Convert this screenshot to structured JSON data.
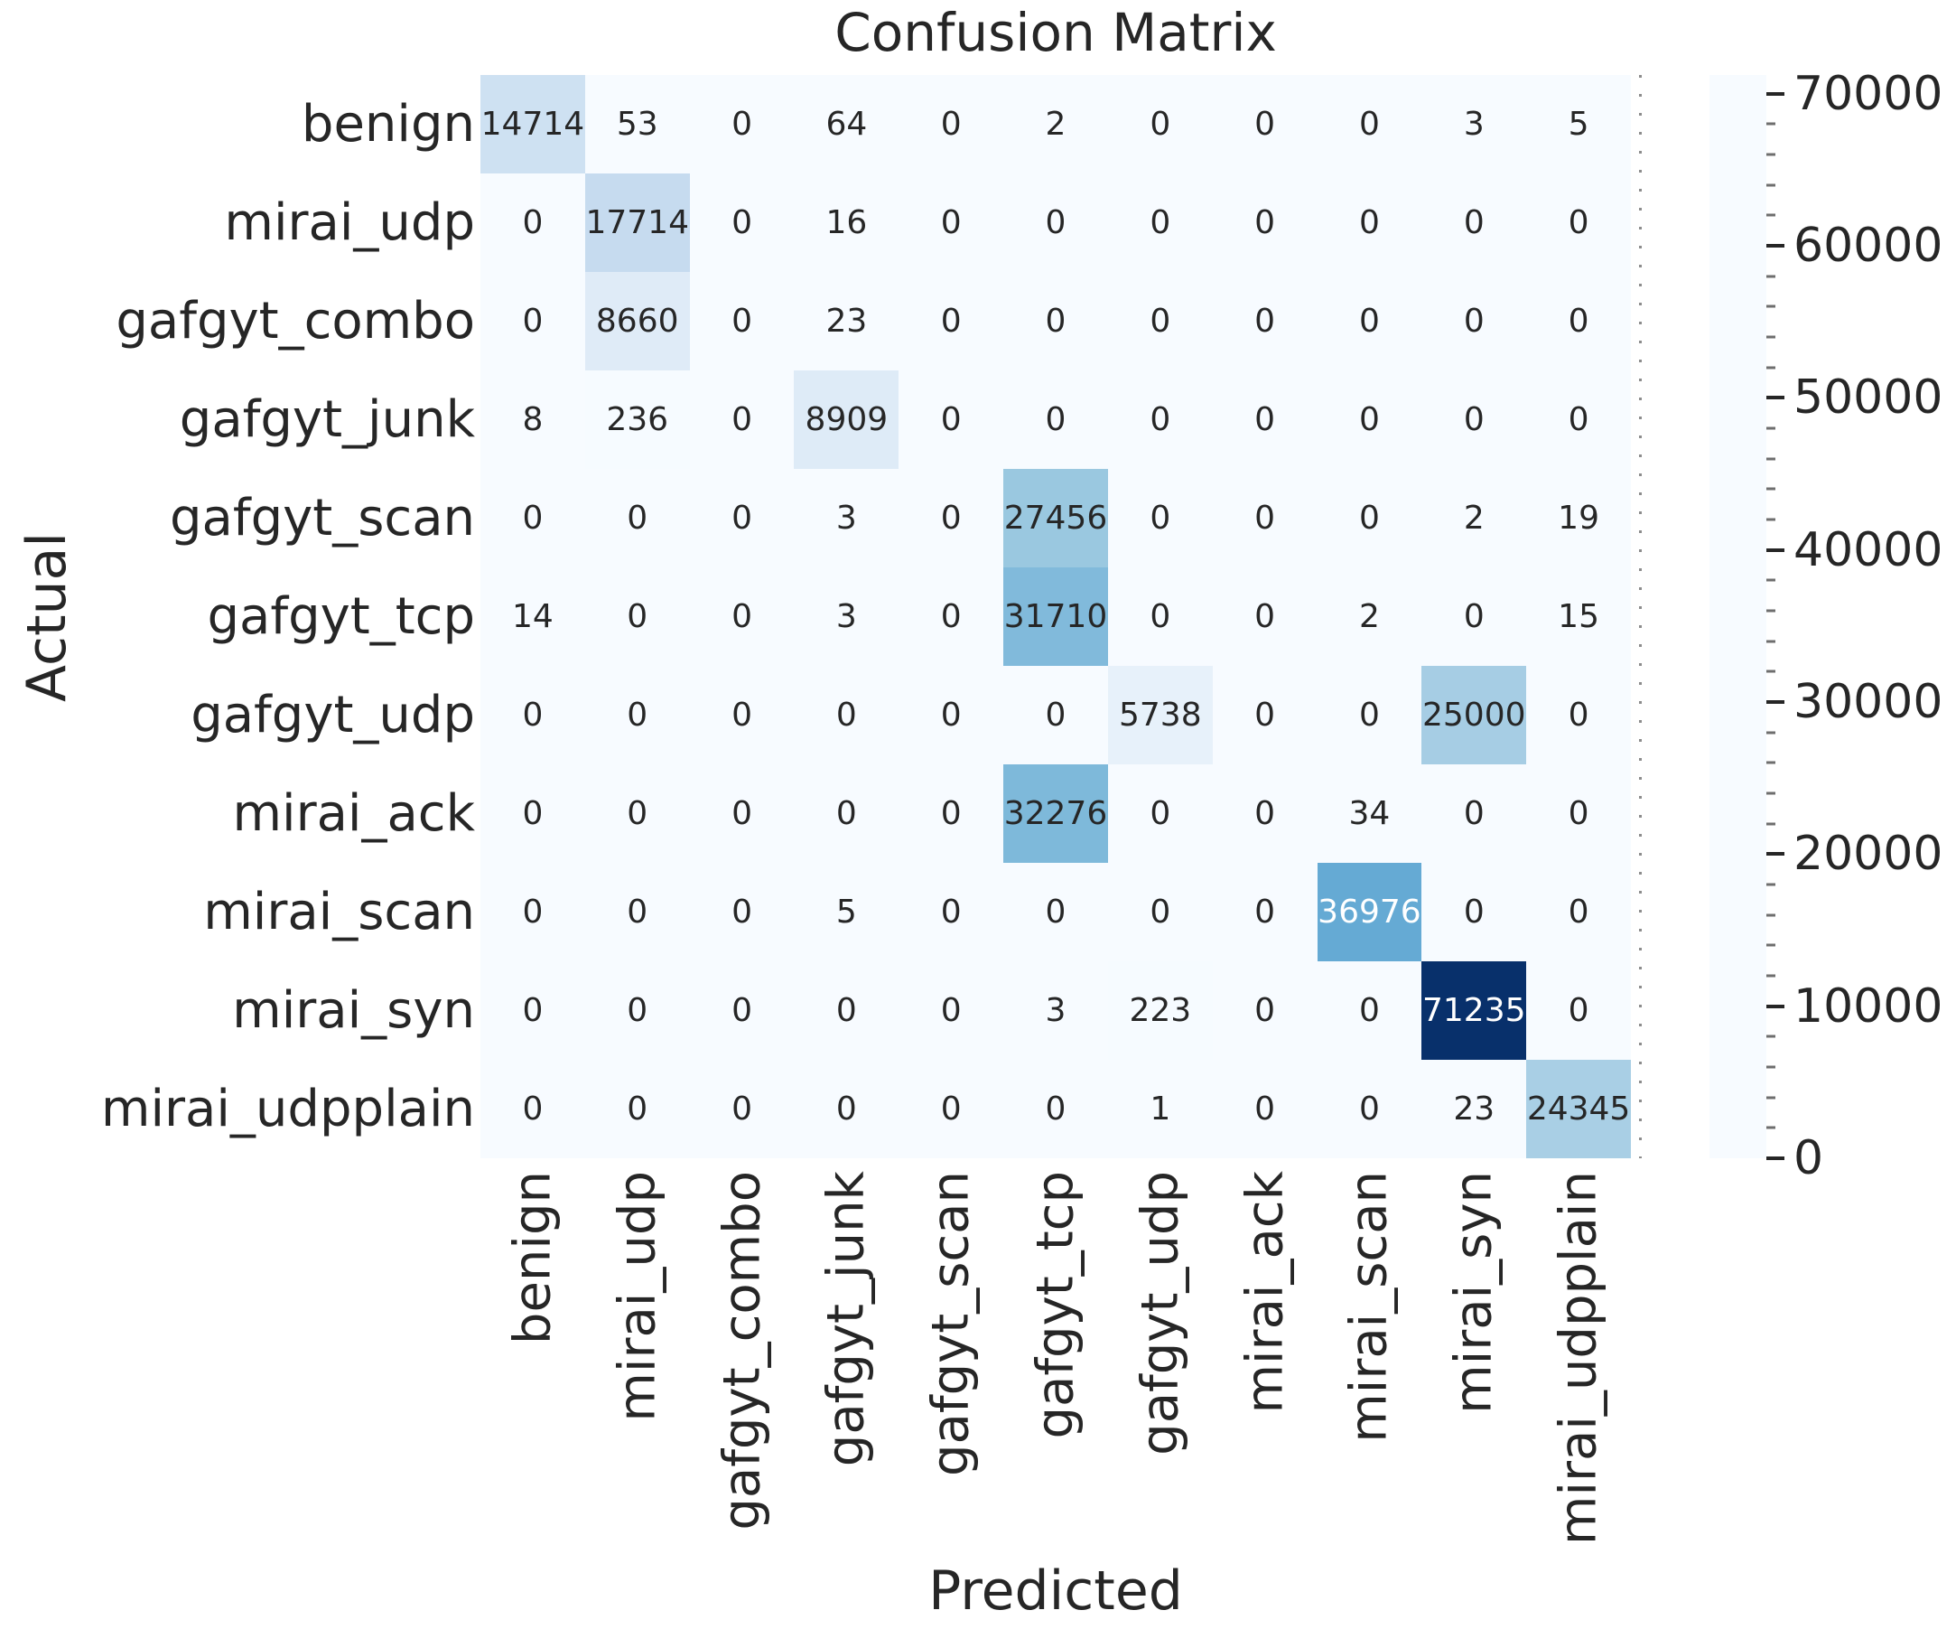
{
  "chart_data": {
    "type": "heatmap",
    "title": "Confusion Matrix",
    "xlabel": "Predicted",
    "ylabel": "Actual",
    "classes": [
      "benign",
      "mirai_udp",
      "gafgyt_combo",
      "gafgyt_junk",
      "gafgyt_scan",
      "gafgyt_tcp",
      "gafgyt_udp",
      "mirai_ack",
      "mirai_scan",
      "mirai_syn",
      "mirai_udpplain"
    ],
    "matrix": [
      [
        14714,
        53,
        0,
        64,
        0,
        2,
        0,
        0,
        0,
        3,
        5
      ],
      [
        0,
        17714,
        0,
        16,
        0,
        0,
        0,
        0,
        0,
        0,
        0
      ],
      [
        0,
        8660,
        0,
        23,
        0,
        0,
        0,
        0,
        0,
        0,
        0
      ],
      [
        8,
        236,
        0,
        8909,
        0,
        0,
        0,
        0,
        0,
        0,
        0
      ],
      [
        0,
        0,
        0,
        3,
        0,
        27456,
        0,
        0,
        0,
        2,
        19
      ],
      [
        14,
        0,
        0,
        3,
        0,
        31710,
        0,
        0,
        2,
        0,
        15
      ],
      [
        0,
        0,
        0,
        0,
        0,
        0,
        5738,
        0,
        0,
        25000,
        0
      ],
      [
        0,
        0,
        0,
        0,
        0,
        32276,
        0,
        0,
        34,
        0,
        0
      ],
      [
        0,
        0,
        0,
        5,
        0,
        0,
        0,
        0,
        36976,
        0,
        0
      ],
      [
        0,
        0,
        0,
        0,
        0,
        3,
        223,
        0,
        0,
        71235,
        0
      ],
      [
        0,
        0,
        0,
        0,
        0,
        0,
        1,
        0,
        0,
        23,
        24345
      ]
    ],
    "vmin": 0,
    "vmax": 71235,
    "colormap_name": "Blues",
    "colormap_hex": [
      "#f7fbff",
      "#deebf7",
      "#c6dbef",
      "#9ecae1",
      "#6baed6",
      "#4292c6",
      "#2171b5",
      "#08519c",
      "#08306b"
    ],
    "annotation_dark_color": "#262626",
    "annotation_light_color": "#ffffff",
    "colorbar": {
      "position": "right",
      "tick_values": [
        0,
        10000,
        20000,
        30000,
        40000,
        50000,
        60000,
        70000
      ],
      "tick_labels": [
        "0",
        "10000",
        "20000",
        "30000",
        "40000",
        "50000",
        "60000",
        "70000"
      ],
      "minor_tick_step": 2000
    },
    "grid": false,
    "legend_position": "none"
  }
}
